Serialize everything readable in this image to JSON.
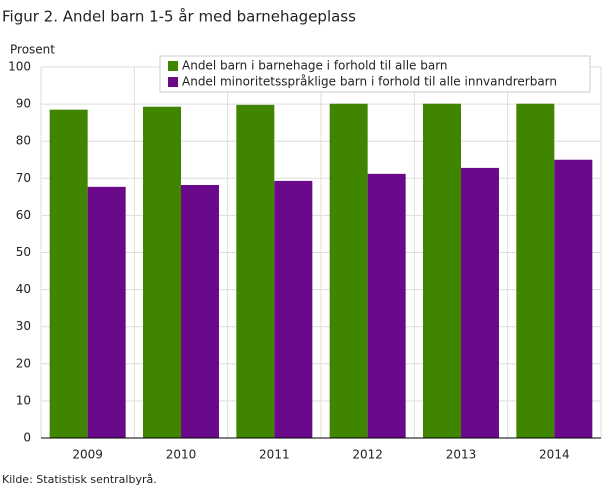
{
  "chart_data": {
    "type": "bar",
    "title": "Figur 2. Andel barn 1-5 år med barnehageplass",
    "y_label": "Prosent",
    "categories": [
      "2009",
      "2010",
      "2011",
      "2012",
      "2013",
      "2014"
    ],
    "series": [
      {
        "name": "Andel barn i barnehage i forhold til alle barn",
        "color": "#3f8500",
        "values": [
          88.5,
          89.3,
          89.8,
          90.1,
          90.1,
          90.1
        ]
      },
      {
        "name": "Andel minoritetsspråklige barn i forhold til alle innvandrerbarn",
        "color": "#6a0a8a",
        "values": [
          67.7,
          68.2,
          69.3,
          71.2,
          72.8,
          75.0
        ]
      }
    ],
    "ylim": [
      0,
      100
    ],
    "yticks": [
      0,
      10,
      20,
      30,
      40,
      50,
      60,
      70,
      80,
      90,
      100
    ],
    "grid": true,
    "source": "Kilde: Statistisk sentralbyrå."
  }
}
